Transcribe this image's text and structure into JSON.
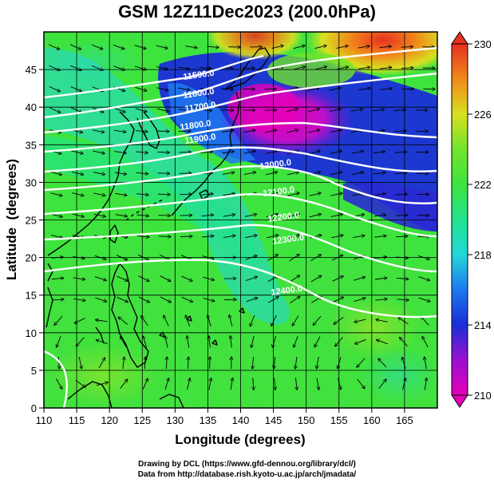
{
  "title": "GSM 12Z11Dec2023 (200.0hPa)",
  "chart_data": {
    "type": "heatmap",
    "title": "GSM 12Z11Dec2023 (200.0hPa)",
    "xlabel": "Longitude (degrees)",
    "ylabel": "Latitude  (degrees)",
    "xlim": [
      110,
      170
    ],
    "ylim": [
      0,
      50
    ],
    "x_ticks": [
      "110",
      "115",
      "120",
      "125",
      "130",
      "135",
      "140",
      "145",
      "150",
      "155",
      "160",
      "165"
    ],
    "y_ticks": [
      "0",
      "5",
      "10",
      "15",
      "20",
      "25",
      "30",
      "35",
      "40",
      "45"
    ],
    "grid": true,
    "colorbar": {
      "ticks": [
        "210",
        "214",
        "218",
        "222",
        "226",
        "230"
      ],
      "range": [
        210,
        230
      ],
      "placement": "right"
    },
    "contour_labels": [
      "11500.0",
      "11600.0",
      "11700.0",
      "11800.0",
      "11900.0",
      "12000.0",
      "12100.0",
      "12200.0",
      "12300.0",
      "12400.0"
    ],
    "colors": {
      "low": "#e400b8",
      "cold": "#1a2ed8",
      "cyan": "#22d8d8",
      "green": "#3ee33e",
      "yellow": "#d8e020",
      "warm": "#f08a1a",
      "high": "#e83020"
    }
  },
  "credits": {
    "line1": "Drawing by DCL (https://www.gfd-dennou.org/library/dcl/)",
    "line2": "Data from http://database.rish.kyoto-u.ac.jp/arch/jmadata/"
  }
}
